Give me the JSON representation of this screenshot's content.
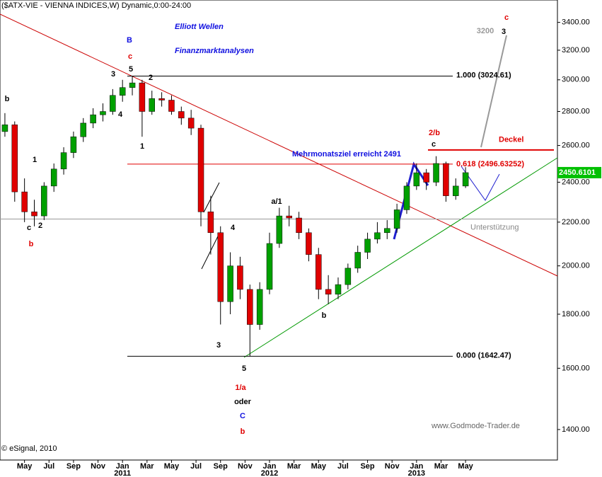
{
  "chart_data": {
    "type": "candlestick",
    "title": "($ATX-VIE - VIENNA INDICES,W) Dynamic,0:00-24:00",
    "headline": [
      "Elliott Wellen",
      "Finanzmarktanalysen"
    ],
    "source": "www.Godmode-Trader.de",
    "copyright": "© eSignal, 2010",
    "log_scale": true,
    "up_color": "#00a000",
    "down_color": "#e00000",
    "x": [
      -1.6,
      -0.8,
      0,
      0.8,
      1.6,
      2.4,
      3.2,
      4,
      4.8,
      5.6,
      6.4,
      7.2,
      8,
      8.8,
      9.6,
      10.4,
      11.2,
      12,
      12.8,
      13.6,
      14.4,
      15.2,
      16,
      16.8,
      17.6,
      18.4,
      19.2,
      20,
      20.8,
      21.6,
      22.4,
      23.2,
      24,
      24.8,
      25.6,
      26.4,
      27.2,
      28,
      28.8,
      29.6,
      30.4,
      31.2,
      32,
      32.8,
      33.6,
      34.4,
      35.2,
      36
    ],
    "open": [
      2680,
      2720,
      2350,
      2250,
      2230,
      2380,
      2470,
      2560,
      2650,
      2730,
      2780,
      2800,
      2900,
      2950,
      2980,
      2800,
      2880,
      2870,
      2800,
      2760,
      2700,
      2250,
      2150,
      1850,
      2000,
      1900,
      1760,
      1900,
      2100,
      2230,
      2220,
      2150,
      2050,
      1900,
      1880,
      1920,
      1990,
      2060,
      2120,
      2150,
      2170,
      2260,
      2380,
      2450,
      2400,
      2500,
      2330,
      2380
    ],
    "high": [
      2790,
      2740,
      2420,
      2310,
      2400,
      2500,
      2590,
      2680,
      2760,
      2820,
      2850,
      2940,
      3000,
      3024.61,
      3000,
      2930,
      2920,
      2900,
      2830,
      2810,
      2720,
      2330,
      2180,
      2060,
      2040,
      1920,
      1930,
      2150,
      2270,
      2280,
      2250,
      2170,
      2080,
      1960,
      1950,
      2010,
      2090,
      2150,
      2200,
      2210,
      2290,
      2400,
      2500,
      2470,
      2540,
      2510,
      2420,
      2480
    ],
    "low": [
      2650,
      2300,
      2200,
      2180,
      2210,
      2350,
      2440,
      2530,
      2620,
      2700,
      2740,
      2780,
      2860,
      2900,
      2650,
      2780,
      2830,
      2780,
      2720,
      2660,
      2180,
      2050,
      1760,
      1800,
      1860,
      1642.47,
      1740,
      1880,
      2080,
      2180,
      2120,
      2020,
      1860,
      1840,
      1860,
      1900,
      1970,
      2030,
      2100,
      2120,
      2150,
      2240,
      2360,
      2360,
      2380,
      2300,
      2310,
      2370
    ],
    "close": [
      2720,
      2350,
      2250,
      2230,
      2380,
      2470,
      2560,
      2650,
      2730,
      2780,
      2800,
      2900,
      2950,
      2980,
      2800,
      2880,
      2870,
      2800,
      2760,
      2700,
      2250,
      2150,
      1850,
      2000,
      1900,
      1760,
      1900,
      2100,
      2230,
      2220,
      2150,
      2050,
      1900,
      1880,
      1920,
      1990,
      2060,
      2120,
      2150,
      2170,
      2260,
      2380,
      2450,
      2400,
      2500,
      2330,
      2380,
      2450.61
    ],
    "last_price": 2450.6101,
    "xlim": [
      -2,
      43.5
    ],
    "xticks": [
      {
        "value": 0,
        "label": "May"
      },
      {
        "value": 2,
        "label": "Jul"
      },
      {
        "value": 4,
        "label": "Sep"
      },
      {
        "value": 6,
        "label": "Nov"
      },
      {
        "value": 8,
        "label": "Jan"
      },
      {
        "value": 10,
        "label": "Mar"
      },
      {
        "value": 12,
        "label": "May"
      },
      {
        "value": 14,
        "label": "Jul"
      },
      {
        "value": 16,
        "label": "Sep"
      },
      {
        "value": 18,
        "label": "Nov"
      },
      {
        "value": 20,
        "label": "Jan"
      },
      {
        "value": 22,
        "label": "Mar"
      },
      {
        "value": 24,
        "label": "May"
      },
      {
        "value": 26,
        "label": "Jul"
      },
      {
        "value": 28,
        "label": "Sep"
      },
      {
        "value": 30,
        "label": "Nov"
      },
      {
        "value": 32,
        "label": "Jan"
      },
      {
        "value": 34,
        "label": "Mar"
      },
      {
        "value": 36,
        "label": "May"
      }
    ],
    "x_year_labels": [
      {
        "value": 8,
        "label": "2011"
      },
      {
        "value": 20,
        "label": "2012"
      },
      {
        "value": 32,
        "label": "2013"
      }
    ],
    "ylim": [
      1310,
      3570
    ],
    "yticks": [
      {
        "value": 1400,
        "label": "1400.00"
      },
      {
        "value": 1600,
        "label": "1600.00"
      },
      {
        "value": 1800,
        "label": "1800.00"
      },
      {
        "value": 2000,
        "label": "2000.00"
      },
      {
        "value": 2200,
        "label": "2200.00"
      },
      {
        "value": 2400,
        "label": "2400.00"
      },
      {
        "value": 2600,
        "label": "2600.00"
      },
      {
        "value": 2800,
        "label": "2800.00"
      },
      {
        "value": 3000,
        "label": "3000.00"
      },
      {
        "value": 3200,
        "label": "3200.00"
      },
      {
        "value": 3400,
        "label": "3400.00"
      }
    ],
    "levels": [
      {
        "value": 3024.61,
        "label": "1.000 (3024.61)",
        "color": "#000000"
      },
      {
        "value": 1642.47,
        "label": "0.000 (1642.47)",
        "color": "#000000"
      },
      {
        "value": 2496.63252,
        "label": "0.618 (2496.63252)",
        "color": "#e00000"
      },
      {
        "value": 2575,
        "label": "Deckel",
        "color": "#e00000"
      },
      {
        "value": 2215,
        "label": "Unterstützung",
        "color": "#999999"
      }
    ],
    "annotations": [
      "b",
      "1",
      "c",
      "2",
      "b",
      "3",
      "4",
      "5",
      "2",
      "1",
      "B",
      "c",
      "4",
      "3",
      "5",
      "1/a",
      "oder",
      "C",
      "b",
      "a/1",
      "b",
      "2/b",
      "c",
      "c",
      "3",
      "3200",
      "Mehrmonatsziel erreicht 2491"
    ]
  }
}
